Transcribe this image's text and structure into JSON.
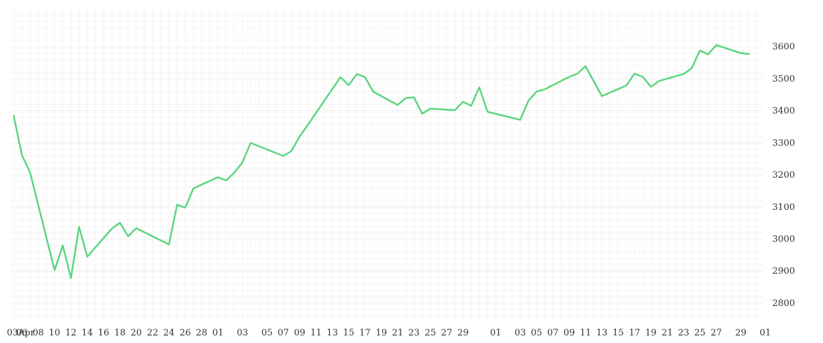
{
  "chart_data": {
    "type": "line",
    "title": "",
    "xlabel": "",
    "ylabel": "",
    "x_tick_labels": [
      "03Apr",
      "06",
      "08",
      "10",
      "12",
      "14",
      "16",
      "18",
      "20",
      "22",
      "24",
      "26",
      "28",
      "01",
      "03",
      "05",
      "07",
      "09",
      "11",
      "13",
      "15",
      "17",
      "19",
      "21",
      "23",
      "25",
      "27",
      "29",
      "01",
      "03",
      "05",
      "07",
      "09",
      "11",
      "13",
      "15",
      "17",
      "19",
      "21",
      "23",
      "25",
      "27",
      "29",
      "01"
    ],
    "y_ticks": [
      2800,
      2900,
      3000,
      3100,
      3200,
      3300,
      3400,
      3500,
      3600
    ],
    "ylim": [
      2740,
      3720
    ],
    "grid": true,
    "y_axis_position": "right",
    "colors": {
      "line": "#5ad57f",
      "grid": "#eeeeee",
      "text": "#333333"
    },
    "series": [
      {
        "x": [
          "2024-04-03",
          "2024-04-04",
          "2024-04-05",
          "2024-04-08",
          "2024-04-09",
          "2024-04-10",
          "2024-04-11",
          "2024-04-12",
          "2024-04-15",
          "2024-04-16",
          "2024-04-17",
          "2024-04-18",
          "2024-04-22",
          "2024-04-23",
          "2024-04-24",
          "2024-04-25",
          "2024-04-28",
          "2024-04-29",
          "2024-04-30",
          "2024-05-01",
          "2024-05-02",
          "2024-05-06",
          "2024-05-07",
          "2024-05-08",
          "2024-05-09",
          "2024-05-13",
          "2024-05-14",
          "2024-05-15",
          "2024-05-16",
          "2024-05-17",
          "2024-05-20",
          "2024-05-21",
          "2024-05-22",
          "2024-05-23",
          "2024-05-24",
          "2024-05-27",
          "2024-05-28",
          "2024-05-29",
          "2024-05-30",
          "2024-05-31",
          "2024-06-04",
          "2024-06-05",
          "2024-06-06",
          "2024-06-07",
          "2024-06-10",
          "2024-06-11",
          "2024-06-12",
          "2024-06-14",
          "2024-06-17",
          "2024-06-18",
          "2024-06-19",
          "2024-06-20",
          "2024-06-21",
          "2024-06-24",
          "2024-06-25",
          "2024-06-26",
          "2024-06-27",
          "2024-06-28",
          "2024-07-01",
          "2024-07-02"
        ],
        "values": [
          3385,
          3262,
          3208,
          2903,
          2980,
          2878,
          3038,
          2945,
          3032,
          3051,
          3009,
          3034,
          2983,
          3107,
          3098,
          3158,
          3193,
          3183,
          3207,
          3239,
          3300,
          3259,
          3275,
          3320,
          3356,
          3505,
          3480,
          3515,
          3505,
          3460,
          3418,
          3440,
          3442,
          3391,
          3407,
          3402,
          3428,
          3416,
          3473,
          3397,
          3372,
          3431,
          3460,
          3467,
          3506,
          3516,
          3539,
          3446,
          3479,
          3516,
          3506,
          3475,
          3493,
          3515,
          3533,
          3588,
          3576,
          3605,
          3580,
          3577
        ]
      }
    ]
  }
}
